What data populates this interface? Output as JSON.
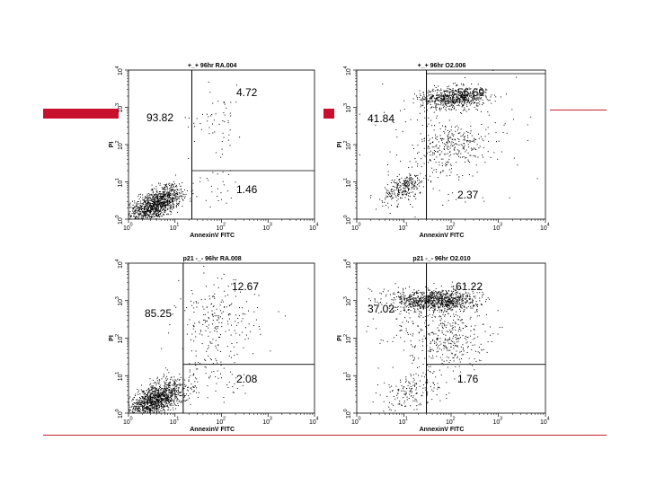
{
  "slide": {
    "colors": {
      "accent": "#c8102e",
      "points": "#000000",
      "axes": "#000000"
    }
  },
  "chart_data": [
    {
      "type": "scatter",
      "title": "+_+ 96hr RA.004",
      "xlabel": "AnnexinV FITC",
      "ylabel": "PI",
      "x_scale": "log",
      "y_scale": "log",
      "xlim": [
        1,
        10000
      ],
      "ylim": [
        1,
        10000
      ],
      "x_ticks": [
        "10",
        "10",
        "10",
        "10",
        "10"
      ],
      "x_tick_exp": [
        "0",
        "1",
        "2",
        "3",
        "4"
      ],
      "y_ticks": [
        "10",
        "10",
        "10",
        "10",
        "10"
      ],
      "y_tick_exp": [
        "0",
        "1",
        "2",
        "3",
        "4"
      ],
      "gates": {
        "x": 23,
        "y": 20
      },
      "quadrants": {
        "upper_left": "93.82",
        "upper_right": "4.72",
        "lower_right": "1.46"
      },
      "populations": [
        {
          "count": 900,
          "cx": 0.55,
          "cy": 0.35,
          "sx": 0.28,
          "sy": 0.22,
          "rho": 0.55
        },
        {
          "count": 220,
          "cx": 0.8,
          "cy": 0.6,
          "sx": 0.25,
          "sy": 0.22,
          "rho": 0.4
        },
        {
          "count": 25,
          "cx": 1.9,
          "cy": 0.9,
          "sx": 0.25,
          "sy": 0.3,
          "rho": 0.0
        },
        {
          "count": 55,
          "cx": 1.9,
          "cy": 2.7,
          "sx": 0.3,
          "sy": 0.45,
          "rho": 0.0
        }
      ]
    },
    {
      "type": "scatter",
      "title": "+_+ 96hr O2.006",
      "xlabel": "AnnexinV FITC",
      "ylabel": "PI",
      "x_scale": "log",
      "y_scale": "log",
      "xlim": [
        1,
        10000
      ],
      "ylim": [
        1,
        10000
      ],
      "x_ticks": [
        "10",
        "10",
        "10",
        "10",
        "10"
      ],
      "x_tick_exp": [
        "0",
        "1",
        "2",
        "3",
        "4"
      ],
      "y_ticks": [
        "10",
        "10",
        "10",
        "10",
        "10"
      ],
      "y_tick_exp": [
        "0",
        "1",
        "2",
        "3",
        "4"
      ],
      "gates": {
        "x": 30,
        "y": 8000
      },
      "quadrants": {
        "upper_left": "41.84",
        "upper_right": "56.69",
        "lower_right": "2.37"
      },
      "populations": [
        {
          "count": 650,
          "cx": 2.05,
          "cy": 3.25,
          "sx": 0.35,
          "sy": 0.14,
          "rho": 0.1
        },
        {
          "count": 220,
          "cx": 2.1,
          "cy": 2.0,
          "sx": 0.35,
          "sy": 0.28,
          "rho": 0.0
        },
        {
          "count": 260,
          "cx": 1.0,
          "cy": 0.85,
          "sx": 0.22,
          "sy": 0.2,
          "rho": 0.55
        },
        {
          "count": 200,
          "cx": 1.8,
          "cy": 1.8,
          "sx": 0.8,
          "sy": 0.9,
          "rho": 0.2
        }
      ]
    },
    {
      "type": "scatter",
      "title": "p21 -_- 96hr RA.008",
      "xlabel": "AnnexinV FITC",
      "ylabel": "PI",
      "x_scale": "log",
      "y_scale": "log",
      "xlim": [
        1,
        10000
      ],
      "ylim": [
        1,
        10000
      ],
      "x_ticks": [
        "10",
        "10",
        "10",
        "10",
        "10"
      ],
      "x_tick_exp": [
        "0",
        "1",
        "2",
        "3",
        "4"
      ],
      "y_ticks": [
        "10",
        "10",
        "10",
        "10",
        "10"
      ],
      "y_tick_exp": [
        "0",
        "1",
        "2",
        "3",
        "4"
      ],
      "gates": {
        "x": 15,
        "y": 20
      },
      "quadrants": {
        "upper_left": "85.25",
        "upper_right": "12.67",
        "lower_right": "2.08"
      },
      "populations": [
        {
          "count": 1000,
          "cx": 0.55,
          "cy": 0.3,
          "sx": 0.3,
          "sy": 0.22,
          "rho": 0.55
        },
        {
          "count": 220,
          "cx": 0.85,
          "cy": 0.6,
          "sx": 0.3,
          "sy": 0.25,
          "rho": 0.4
        },
        {
          "count": 230,
          "cx": 1.9,
          "cy": 2.4,
          "sx": 0.45,
          "sy": 0.55,
          "rho": 0.0
        },
        {
          "count": 50,
          "cx": 1.9,
          "cy": 0.9,
          "sx": 0.35,
          "sy": 0.3,
          "rho": 0.0
        }
      ]
    },
    {
      "type": "scatter",
      "title": "p21 -_- 96hr O2.010",
      "xlabel": "AnnexinV FITC",
      "ylabel": "PI",
      "x_scale": "log",
      "y_scale": "log",
      "xlim": [
        1,
        10000
      ],
      "ylim": [
        1,
        10000
      ],
      "x_ticks": [
        "10",
        "10",
        "10",
        "10",
        "10"
      ],
      "x_tick_exp": [
        "0",
        "1",
        "2",
        "3",
        "4"
      ],
      "y_ticks": [
        "10",
        "10",
        "10",
        "10",
        "10"
      ],
      "y_tick_exp": [
        "0",
        "1",
        "2",
        "3",
        "4"
      ],
      "gates": {
        "x": 30,
        "y": 20
      },
      "quadrants": {
        "upper_left": "37.02",
        "upper_right": "61.22",
        "lower_right": "1.76"
      },
      "populations": [
        {
          "count": 950,
          "cx": 1.7,
          "cy": 3.0,
          "sx": 0.45,
          "sy": 0.15,
          "rho": 0.0
        },
        {
          "count": 330,
          "cx": 1.9,
          "cy": 2.0,
          "sx": 0.4,
          "sy": 0.4,
          "rho": 0.0
        },
        {
          "count": 170,
          "cx": 1.15,
          "cy": 0.6,
          "sx": 0.35,
          "sy": 0.3,
          "rho": 0.4
        },
        {
          "count": 90,
          "cx": 1.0,
          "cy": 2.6,
          "sx": 0.5,
          "sy": 0.5,
          "rho": 0.0
        }
      ]
    }
  ]
}
